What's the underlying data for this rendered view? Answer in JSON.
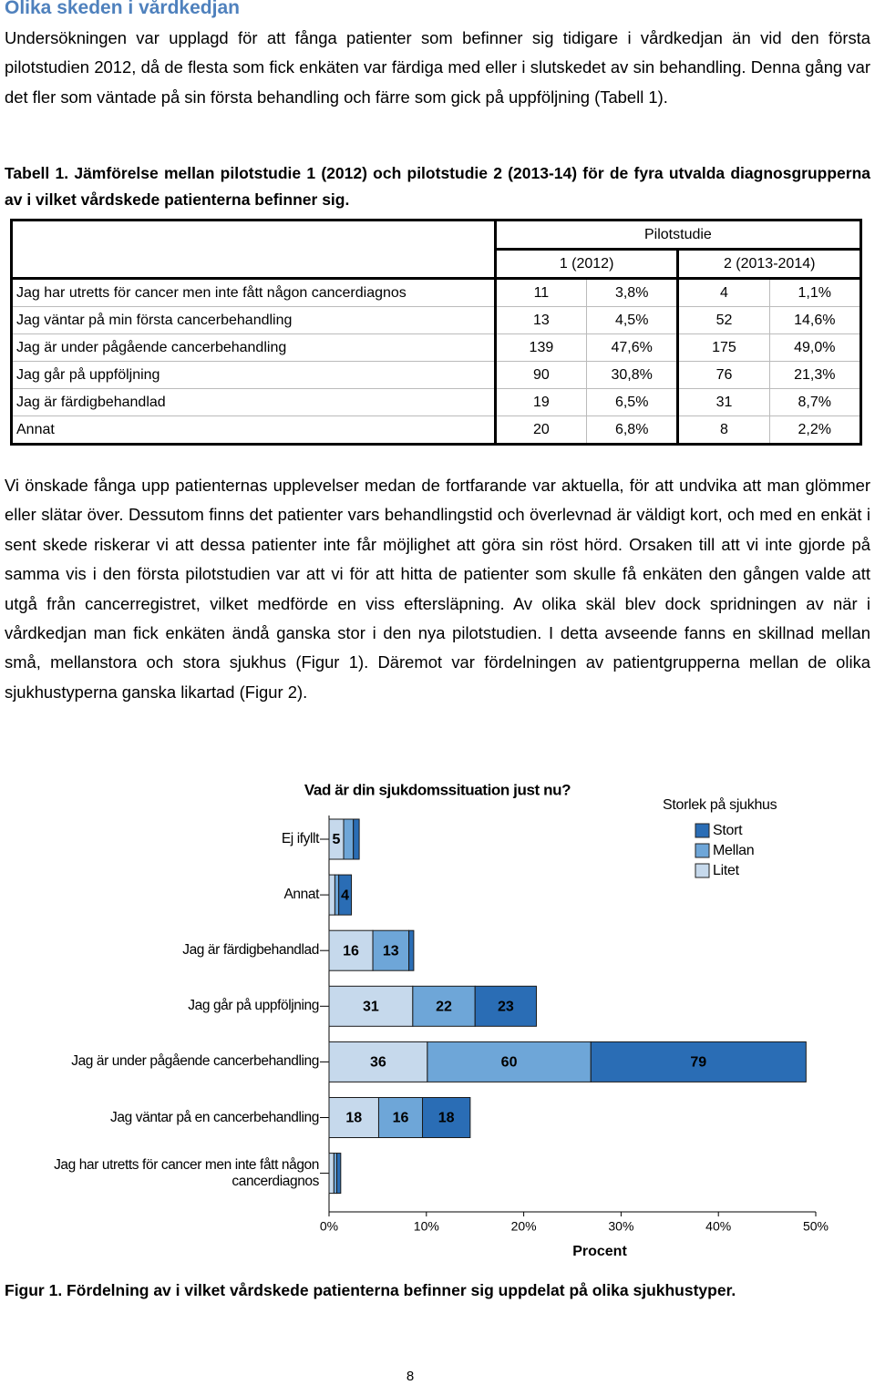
{
  "doc": {
    "heading": "Olika skeden i vårdkedjan",
    "paragraphs": [
      "Undersökningen var upplagd för att fånga patienter som befinner sig tidigare i vårdkedjan än vid den första pilotstudien 2012, då de flesta som fick enkäten var färdiga med eller i slutskedet av sin behandling. Denna gång var det fler som väntade på sin första behandling och färre som gick på uppföljning (Tabell 1).",
      "Vi önskade fånga upp patienternas upplevelser medan de fortfarande var aktuella, för att undvika att man glömmer eller slätar över. Dessutom finns det patienter vars behandlingstid och överlevnad är väldigt kort, och med en enkät i sent skede riskerar vi att dessa patienter inte får möjlighet att göra sin röst hörd. Orsaken till att vi inte gjorde på samma vis i den första pilotstudien var att vi för att hitta de patienter som skulle få enkäten den gången valde att utgå från cancerregistret, vilket medförde en viss eftersläpning. Av olika skäl blev dock spridningen av när i vårdkedjan man fick enkäten ändå ganska stor i den nya pilotstudien. I detta avseende fanns en skillnad mellan små, mellanstora och stora sjukhus (Figur 1). Däremot var fördelningen av patientgrupperna mellan de olika sjukhustyperna ganska likartad (Figur 2)."
    ],
    "table_caption": "Tabell 1. Jämförelse mellan pilotstudie 1 (2012) och pilotstudie 2 (2013-14) för de fyra utvalda diagnosgrupperna av i vilket vårdskede patienterna befinner sig.",
    "figure_caption": "Figur 1. Fördelning av i vilket vårdskede patienterna befinner sig uppdelat på olika sjukhustyper.",
    "page_number": "8"
  },
  "table": {
    "group": "Pilotstudie",
    "columns": [
      "1 (2012)",
      "2 (2013-2014)"
    ],
    "rows": [
      [
        "Jag har utretts för cancer men inte fått någon cancerdiagnos",
        "11",
        "3,8%",
        "4",
        "1,1%"
      ],
      [
        "Jag väntar på min första cancerbehandling",
        "13",
        "4,5%",
        "52",
        "14,6%"
      ],
      [
        "Jag är under pågående cancerbehandling",
        "139",
        "47,6%",
        "175",
        "49,0%"
      ],
      [
        "Jag går på uppföljning",
        "90",
        "30,8%",
        "76",
        "21,3%"
      ],
      [
        "Jag är färdigbehandlad",
        "19",
        "6,5%",
        "31",
        "8,7%"
      ],
      [
        "Annat",
        "20",
        "6,8%",
        "8",
        "2,2%"
      ]
    ]
  },
  "chart_data": {
    "type": "stacked-barh",
    "title": "Vad är din sjukdomssituation just nu?",
    "legend_title": "Storlek på sjukhus",
    "x_label": "Procent",
    "categories": [
      "Ej ifyllt",
      "Annat",
      "Jag är färdigbehandlad",
      "Jag går på uppföljning",
      "Jag är under pågående cancerbehandling",
      "Jag väntar på en cancerbehandling",
      "Jag har utretts för cancer men inte fått någon cancerdiagnos"
    ],
    "series": [
      {
        "name": "Stort",
        "color": "#2a6db5",
        "values": [
          0.6,
          1.3,
          0.5,
          6.3,
          22.1,
          4.9,
          0.4
        ],
        "labels": [
          null,
          4,
          null,
          23,
          79,
          18,
          null
        ]
      },
      {
        "name": "Mellan",
        "color": "#6ea6d8",
        "values": [
          1.0,
          0.4,
          3.7,
          6.4,
          16.8,
          4.5,
          0.3
        ],
        "labels": [
          null,
          null,
          13,
          22,
          60,
          16,
          null
        ]
      },
      {
        "name": "Litet",
        "color": "#c6d9ec",
        "values": [
          1.5,
          0.6,
          4.5,
          8.6,
          10.1,
          5.1,
          0.5
        ],
        "labels": [
          5,
          null,
          16,
          31,
          36,
          18,
          null
        ]
      }
    ],
    "xlim": [
      0,
      50
    ],
    "xticks": [
      {
        "value": 0,
        "label": "0%"
      },
      {
        "value": 10,
        "label": "10%"
      },
      {
        "value": 20,
        "label": "20%"
      },
      {
        "value": 30,
        "label": "30%"
      },
      {
        "value": 40,
        "label": "40%"
      },
      {
        "value": 50,
        "label": "50%"
      }
    ],
    "legend": "upper-right"
  }
}
